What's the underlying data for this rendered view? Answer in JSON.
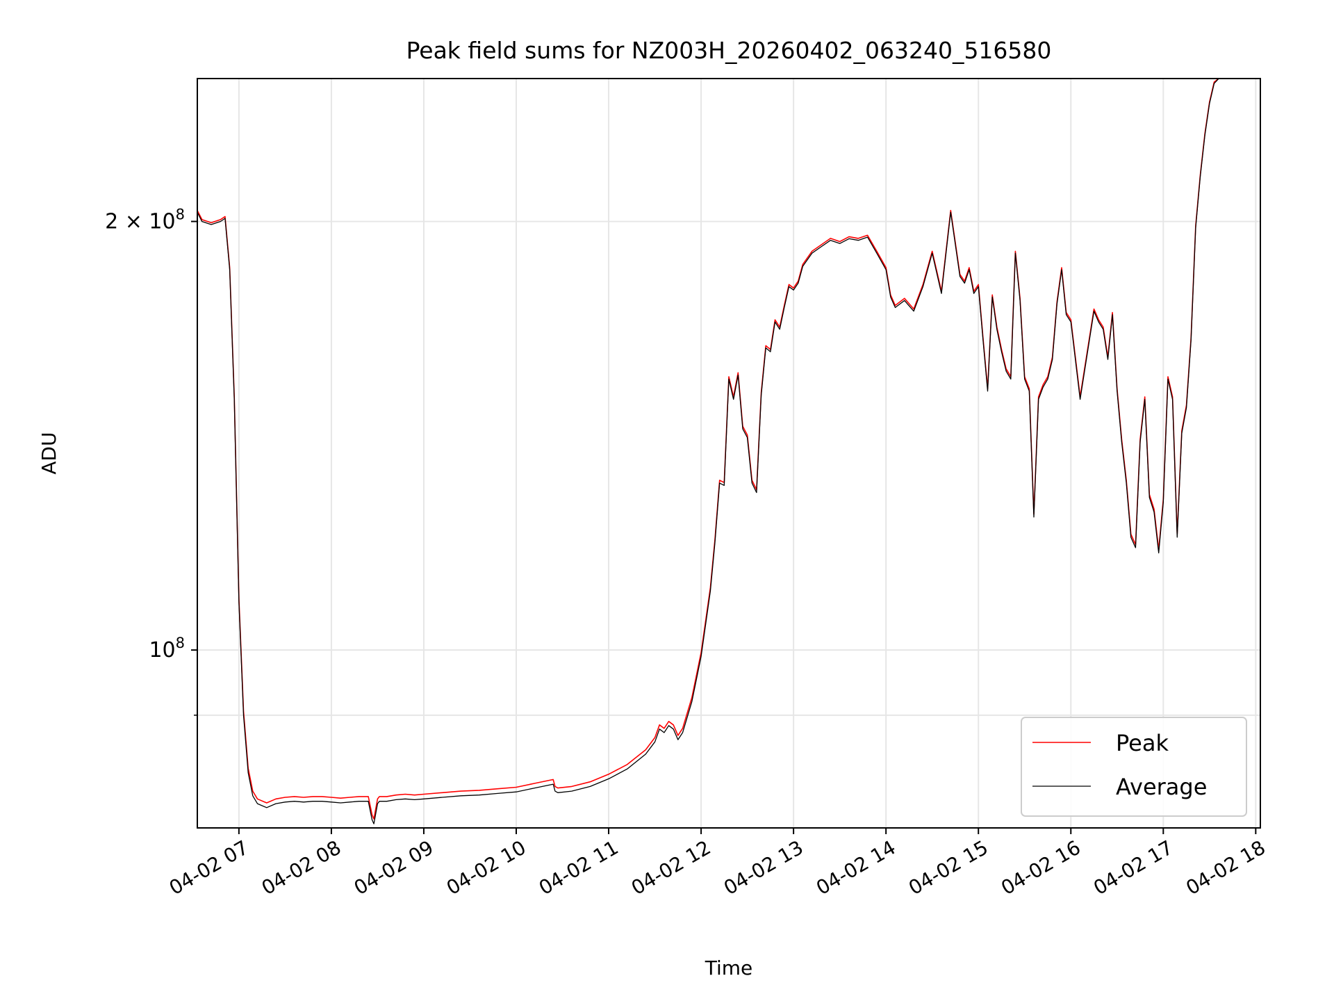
{
  "chart_data": {
    "type": "line",
    "title": "Peak field sums for NZ003H_20260402_063240_516580",
    "xlabel": "Time",
    "ylabel": "ADU",
    "y_scale": "log",
    "ylim": [
      75000000,
      252000000
    ],
    "xlim_hours": [
      6.55,
      18.05
    ],
    "x_tick_hours": [
      7,
      8,
      9,
      10,
      11,
      12,
      13,
      14,
      15,
      16,
      17,
      18
    ],
    "x_tick_labels": [
      "04-02 07",
      "04-02 08",
      "04-02 09",
      "04-02 10",
      "04-02 11",
      "04-02 12",
      "04-02 13",
      "04-02 14",
      "04-02 15",
      "04-02 16",
      "04-02 17",
      "04-02 18"
    ],
    "y_major_ticks": [
      {
        "value": 100000000,
        "label_base": "10",
        "label_exp": "8"
      },
      {
        "value": 200000000,
        "label_base": "2 × 10",
        "label_exp": "8"
      }
    ],
    "y_minor_ticks": [
      90000000
    ],
    "grid": true,
    "legend_position": "lower-right",
    "series": [
      {
        "name": "Peak",
        "color": "#ff0000",
        "offset_millions": 0.6
      },
      {
        "name": "Average",
        "color": "#000000",
        "offset_millions": 0.0
      }
    ],
    "x_hours": [
      6.55,
      6.6,
      6.7,
      6.8,
      6.85,
      6.9,
      6.95,
      7.0,
      7.05,
      7.1,
      7.15,
      7.2,
      7.3,
      7.4,
      7.5,
      7.6,
      7.7,
      7.8,
      7.9,
      8.0,
      8.1,
      8.2,
      8.3,
      8.4,
      8.44,
      8.46,
      8.5,
      8.52,
      8.6,
      8.7,
      8.8,
      8.9,
      9.0,
      9.2,
      9.4,
      9.6,
      9.8,
      10.0,
      10.2,
      10.4,
      10.42,
      10.45,
      10.6,
      10.8,
      11.0,
      11.2,
      11.4,
      11.5,
      11.55,
      11.6,
      11.65,
      11.7,
      11.75,
      11.8,
      11.9,
      12.0,
      12.1,
      12.15,
      12.2,
      12.25,
      12.3,
      12.35,
      12.4,
      12.45,
      12.5,
      12.55,
      12.6,
      12.65,
      12.7,
      12.75,
      12.8,
      12.85,
      12.9,
      12.95,
      13.0,
      13.05,
      13.1,
      13.2,
      13.3,
      13.4,
      13.5,
      13.6,
      13.7,
      13.8,
      13.9,
      14.0,
      14.05,
      14.1,
      14.2,
      14.3,
      14.4,
      14.5,
      14.6,
      14.7,
      14.8,
      14.85,
      14.9,
      14.95,
      15.0,
      15.05,
      15.1,
      15.15,
      15.2,
      15.25,
      15.3,
      15.35,
      15.4,
      15.45,
      15.5,
      15.55,
      15.6,
      15.65,
      15.7,
      15.75,
      15.8,
      15.85,
      15.9,
      15.95,
      16.0,
      16.1,
      16.2,
      16.25,
      16.3,
      16.35,
      16.4,
      16.45,
      16.5,
      16.55,
      16.6,
      16.65,
      16.7,
      16.75,
      16.8,
      16.85,
      16.9,
      16.95,
      17.0,
      17.05,
      17.1,
      17.15,
      17.2,
      17.25,
      17.3,
      17.35,
      17.4,
      17.45,
      17.5,
      17.55,
      17.6,
      17.65,
      17.7,
      17.75,
      17.8,
      17.85,
      17.9,
      17.95,
      18.0,
      18.05
    ],
    "average_millions": [
      203,
      200,
      199,
      200,
      201,
      185,
      150,
      108,
      90,
      82,
      79,
      78,
      77.5,
      78,
      78.2,
      78.3,
      78.2,
      78.3,
      78.3,
      78.2,
      78.1,
      78.2,
      78.3,
      78.3,
      76,
      75.5,
      78,
      78.3,
      78.3,
      78.5,
      78.6,
      78.5,
      78.6,
      78.8,
      79.0,
      79.1,
      79.3,
      79.5,
      80.0,
      80.5,
      79.6,
      79.4,
      79.6,
      80.2,
      81.2,
      82.5,
      84.5,
      86.2,
      88.0,
      87.5,
      88.5,
      88.0,
      86.5,
      87.5,
      92.0,
      99.0,
      110.0,
      119.0,
      131.0,
      130.5,
      155.0,
      150.0,
      156.0,
      143.0,
      141.0,
      131.0,
      129.0,
      151.0,
      163.0,
      162.0,
      170.0,
      168.0,
      174.0,
      180.0,
      179.0,
      181.0,
      186.0,
      190.0,
      192.0,
      194.0,
      193.0,
      194.5,
      194.0,
      195.0,
      190.0,
      185.0,
      177.0,
      174.0,
      176.0,
      173.0,
      180.0,
      190.0,
      178.0,
      203.0,
      183.0,
      181.0,
      185.0,
      178.0,
      180.0,
      165.0,
      152.0,
      177.0,
      168.0,
      162.0,
      157.0,
      155.0,
      190.0,
      176.0,
      155.0,
      152.0,
      124.0,
      150.0,
      153.0,
      155.0,
      160.0,
      175.0,
      185.0,
      172.0,
      170.0,
      150.0,
      165.0,
      173.0,
      170.0,
      168.0,
      160.0,
      172.0,
      152.0,
      140.0,
      131.0,
      120.0,
      118.0,
      140.0,
      150.0,
      128.0,
      125.0,
      117.0,
      127.0,
      155.0,
      150.0,
      120.0,
      142.0,
      148.0,
      165.0,
      198.0,
      215.0,
      230.0,
      242.0,
      250.0,
      252.0,
      252.0,
      252.0,
      252.0,
      252.0,
      252.0
    ]
  }
}
